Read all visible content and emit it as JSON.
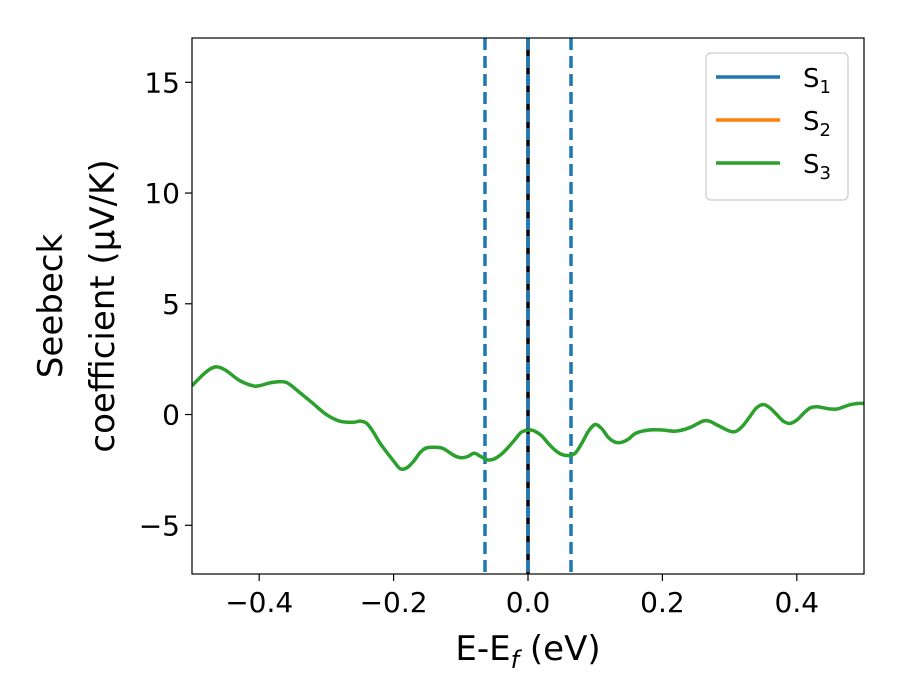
{
  "chart_data": {
    "type": "line",
    "xlabel": {
      "main": "E-E",
      "sub": "f",
      "tail": " (eV)"
    },
    "ylabel": {
      "line1": "Seebeck",
      "line2": "coefficient  (μV/K)"
    },
    "xlim": [
      -0.5,
      0.5
    ],
    "ylim": [
      -7.2,
      17
    ],
    "xticks": [
      -0.4,
      -0.2,
      0.0,
      0.2,
      0.4
    ],
    "xtick_labels": [
      "−0.4",
      "−0.2",
      "0.0",
      "0.2",
      "0.4"
    ],
    "yticks": [
      -5,
      0,
      5,
      10,
      15
    ],
    "ytick_labels": [
      "−5",
      "0",
      "5",
      "10",
      "15"
    ],
    "grid": false,
    "legend_position": "top-right",
    "legend": [
      {
        "name": "S",
        "sub": "1",
        "color": "#1f77b4"
      },
      {
        "name": "S",
        "sub": "2",
        "color": "#ff7f0e"
      },
      {
        "name": "S",
        "sub": "3",
        "color": "#2ca02c"
      }
    ],
    "vlines": [
      {
        "x": -0.064,
        "style": "dashed",
        "color": "#1f77b4"
      },
      {
        "x": 0.0,
        "style": "solid",
        "color": "#000000"
      },
      {
        "x": 0.0,
        "style": "dashed",
        "color": "#1f77b4"
      },
      {
        "x": 0.064,
        "style": "dashed",
        "color": "#1f77b4"
      }
    ],
    "series": [
      {
        "name": "S3",
        "color": "#2ca02c",
        "x": [
          -0.5,
          -0.48,
          -0.465,
          -0.45,
          -0.43,
          -0.41,
          -0.4,
          -0.38,
          -0.36,
          -0.34,
          -0.32,
          -0.3,
          -0.28,
          -0.26,
          -0.25,
          -0.24,
          -0.23,
          -0.22,
          -0.2,
          -0.19,
          -0.18,
          -0.17,
          -0.16,
          -0.15,
          -0.13,
          -0.12,
          -0.11,
          -0.1,
          -0.09,
          -0.08,
          -0.07,
          -0.06,
          -0.05,
          -0.04,
          -0.03,
          -0.02,
          -0.01,
          0.0,
          0.005,
          0.01,
          0.02,
          0.03,
          0.04,
          0.05,
          0.06,
          0.07,
          0.08,
          0.09,
          0.1,
          0.11,
          0.12,
          0.13,
          0.14,
          0.15,
          0.16,
          0.18,
          0.2,
          0.22,
          0.24,
          0.26,
          0.27,
          0.28,
          0.3,
          0.31,
          0.32,
          0.33,
          0.34,
          0.35,
          0.36,
          0.37,
          0.38,
          0.39,
          0.4,
          0.41,
          0.42,
          0.43,
          0.44,
          0.45,
          0.46,
          0.47,
          0.48,
          0.49,
          0.5
        ],
        "y": [
          1.3,
          1.9,
          2.15,
          2.0,
          1.55,
          1.3,
          1.3,
          1.45,
          1.45,
          1.0,
          0.5,
          0.0,
          -0.3,
          -0.35,
          -0.3,
          -0.4,
          -0.8,
          -1.3,
          -2.1,
          -2.45,
          -2.4,
          -2.1,
          -1.7,
          -1.5,
          -1.5,
          -1.65,
          -1.85,
          -1.95,
          -1.9,
          -1.75,
          -1.9,
          -2.05,
          -2.0,
          -1.8,
          -1.5,
          -1.15,
          -0.8,
          -0.7,
          -0.7,
          -0.75,
          -0.95,
          -1.3,
          -1.6,
          -1.8,
          -1.85,
          -1.75,
          -1.3,
          -0.75,
          -0.45,
          -0.65,
          -1.05,
          -1.25,
          -1.25,
          -1.1,
          -0.85,
          -0.7,
          -0.7,
          -0.75,
          -0.6,
          -0.3,
          -0.3,
          -0.45,
          -0.75,
          -0.75,
          -0.5,
          -0.1,
          0.3,
          0.45,
          0.3,
          0.0,
          -0.3,
          -0.4,
          -0.25,
          0.05,
          0.3,
          0.35,
          0.3,
          0.25,
          0.25,
          0.35,
          0.45,
          0.5,
          0.5
        ]
      }
    ]
  }
}
